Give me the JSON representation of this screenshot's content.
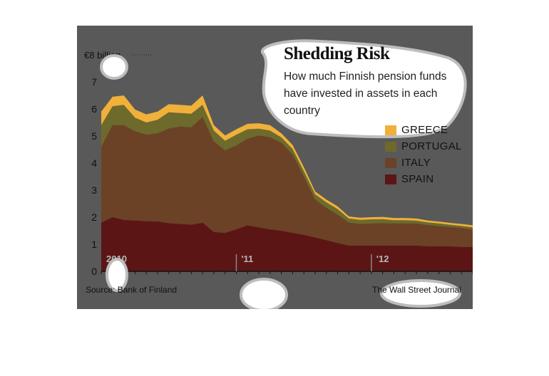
{
  "chart_data": {
    "type": "area",
    "stacked": true,
    "title": "Shedding Risk",
    "subtitle": "How much Finnish pension funds have invested in assets in each country",
    "ylabel": "",
    "y_unit_label": "€8 billion",
    "ylim": [
      0,
      8
    ],
    "y_ticks": [
      "0",
      "1",
      "2",
      "3",
      "4",
      "5",
      "6",
      "7"
    ],
    "x_ticks": [
      "2010",
      "'11",
      "'12"
    ],
    "x_tick_months": [
      0,
      12,
      24
    ],
    "x_months": [
      0,
      1,
      2,
      3,
      4,
      5,
      6,
      7,
      8,
      9,
      10,
      11,
      12,
      13,
      14,
      15,
      16,
      17,
      18,
      19,
      20,
      21,
      22,
      23,
      24,
      25,
      26,
      27,
      28,
      29,
      30,
      31,
      32,
      33
    ],
    "series": [
      {
        "name": "SPAIN",
        "color": "#5c1515",
        "values": [
          1.8,
          2.0,
          1.9,
          1.88,
          1.85,
          1.85,
          1.78,
          1.75,
          1.72,
          1.8,
          1.45,
          1.42,
          1.55,
          1.7,
          1.62,
          1.55,
          1.5,
          1.42,
          1.35,
          1.25,
          1.15,
          1.05,
          0.95,
          0.95,
          0.95,
          0.95,
          0.95,
          0.95,
          0.95,
          0.93,
          0.92,
          0.92,
          0.9,
          0.9
        ]
      },
      {
        "name": "ITALY",
        "color": "#6b4226",
        "values": [
          2.8,
          3.4,
          3.5,
          3.3,
          3.2,
          3.25,
          3.5,
          3.6,
          3.6,
          3.9,
          3.35,
          3.05,
          3.1,
          3.2,
          3.4,
          3.4,
          3.25,
          2.9,
          2.15,
          1.4,
          1.2,
          1.05,
          0.85,
          0.8,
          0.82,
          0.83,
          0.82,
          0.82,
          0.82,
          0.78,
          0.75,
          0.72,
          0.7,
          0.65
        ]
      },
      {
        "name": "PORTUGAL",
        "color": "#6d6a2c",
        "values": [
          0.8,
          0.7,
          0.75,
          0.5,
          0.45,
          0.5,
          0.6,
          0.5,
          0.5,
          0.45,
          0.4,
          0.35,
          0.4,
          0.35,
          0.25,
          0.25,
          0.2,
          0.2,
          0.2,
          0.2,
          0.2,
          0.2,
          0.15,
          0.15,
          0.15,
          0.15,
          0.12,
          0.12,
          0.1,
          0.1,
          0.1,
          0.08,
          0.08,
          0.08
        ]
      },
      {
        "name": "GREECE",
        "color": "#f0b03a",
        "values": [
          0.5,
          0.35,
          0.35,
          0.3,
          0.3,
          0.3,
          0.3,
          0.3,
          0.3,
          0.35,
          0.2,
          0.2,
          0.2,
          0.2,
          0.2,
          0.2,
          0.15,
          0.15,
          0.15,
          0.1,
          0.1,
          0.1,
          0.08,
          0.08,
          0.08,
          0.08,
          0.08,
          0.08,
          0.08,
          0.07,
          0.07,
          0.07,
          0.07,
          0.07
        ]
      }
    ],
    "grid": false,
    "legend_position": "right"
  },
  "colors": {
    "background": "#595959",
    "text": "#111111",
    "axis": "#111111"
  },
  "source_text": "Source: Bank of Finland",
  "credit_text": "The Wall Street Journal"
}
